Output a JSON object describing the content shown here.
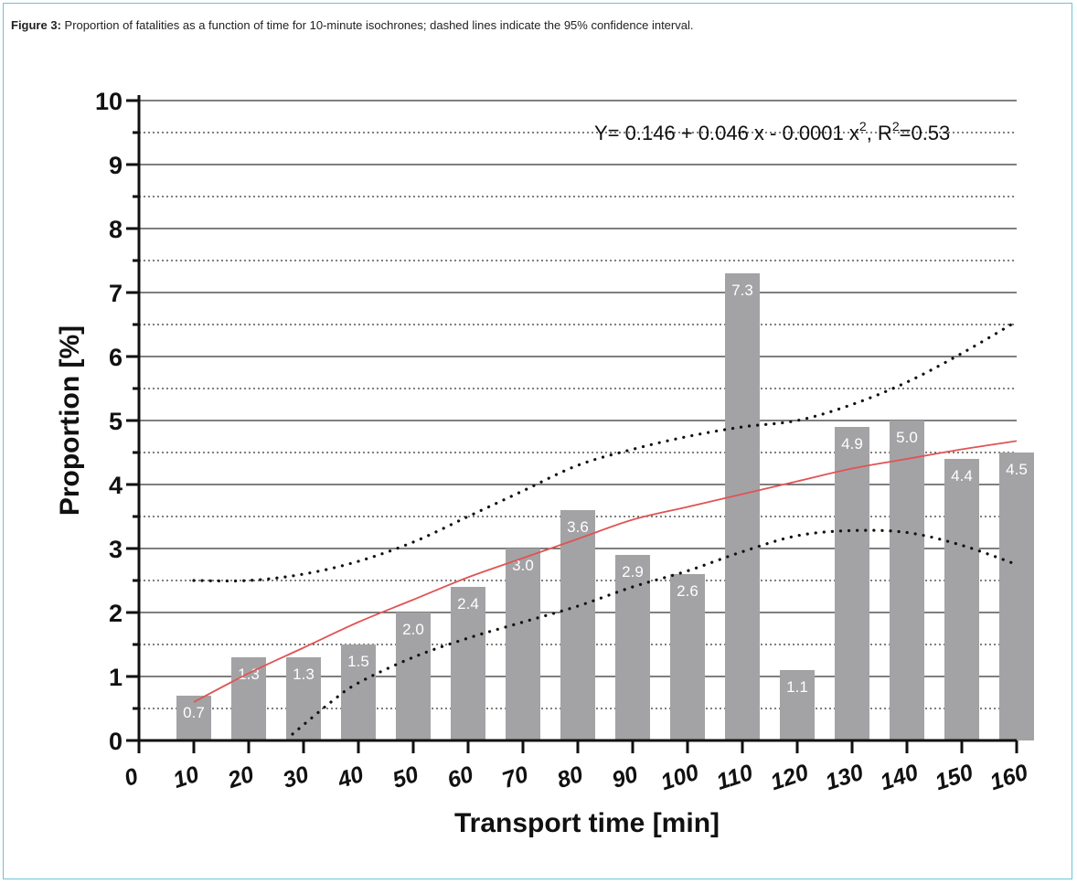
{
  "caption": {
    "label": "Figure 3:",
    "text": " Proportion of fatalities as a function of time for 10-minute isochrones; dashed lines indicate the 95% confidence interval."
  },
  "chart_data": {
    "type": "bar",
    "xlabel": "Transport time [min]",
    "ylabel": "Proportion [%]",
    "xlim": [
      0,
      160
    ],
    "ylim": [
      0,
      10
    ],
    "x_ticks": [
      "0",
      "10",
      "20",
      "30",
      "40",
      "50",
      "60",
      "70",
      "80",
      "90",
      "100",
      "110",
      "120",
      "130",
      "140",
      "150",
      "160"
    ],
    "y_ticks": [
      "0",
      "1",
      "2",
      "3",
      "4",
      "5",
      "6",
      "7",
      "8",
      "9",
      "10"
    ],
    "categories": [
      10,
      20,
      30,
      40,
      50,
      60,
      70,
      80,
      90,
      100,
      110,
      120,
      130,
      140,
      150,
      160
    ],
    "values": [
      0.7,
      1.3,
      1.3,
      1.5,
      2.0,
      2.4,
      3.0,
      3.6,
      2.9,
      2.6,
      7.3,
      1.1,
      4.9,
      5.0,
      4.4,
      4.5
    ],
    "bar_labels": [
      "0.7",
      "1.3",
      "1.3",
      "1.5",
      "2.0",
      "2.4",
      "3.0",
      "3.6",
      "2.9",
      "2.6",
      "7.3",
      "1.1",
      "4.9",
      "5.0",
      "4.4",
      "4.5"
    ],
    "grid": {
      "major": true,
      "minor_dotted": true
    },
    "fit": {
      "equation_main": "Y= 0.146 + 0.046 x - 0.0001 x",
      "equation_exp": "2",
      "equation_sep": ", R",
      "equation_r_exp": "2",
      "equation_r_val": "=0.53",
      "x": [
        10,
        20,
        30,
        40,
        50,
        60,
        70,
        80,
        90,
        100,
        110,
        120,
        130,
        140,
        150,
        160
      ],
      "y": [
        0.6,
        1.05,
        1.45,
        1.85,
        2.2,
        2.55,
        2.85,
        3.15,
        3.45,
        3.65,
        3.85,
        4.05,
        4.25,
        4.4,
        4.55,
        4.68
      ]
    },
    "ci_upper": {
      "x": [
        10,
        20,
        30,
        40,
        50,
        60,
        70,
        80,
        90,
        100,
        110,
        120,
        130,
        140,
        150,
        160
      ],
      "y": [
        2.5,
        2.5,
        2.6,
        2.8,
        3.1,
        3.5,
        3.9,
        4.3,
        4.55,
        4.75,
        4.9,
        5.0,
        5.25,
        5.6,
        6.05,
        6.55
      ]
    },
    "ci_lower": {
      "x": [
        28,
        35,
        40,
        50,
        60,
        70,
        80,
        90,
        100,
        110,
        120,
        130,
        140,
        150,
        160
      ],
      "y": [
        0.1,
        0.6,
        0.9,
        1.3,
        1.6,
        1.85,
        2.1,
        2.4,
        2.65,
        2.95,
        3.2,
        3.28,
        3.25,
        3.05,
        2.75
      ]
    },
    "colors": {
      "bar": "#a3a3a6",
      "fit": "#e05454",
      "ci": "#111111",
      "grid": "#333333",
      "frame": "#6fc2d6"
    }
  }
}
